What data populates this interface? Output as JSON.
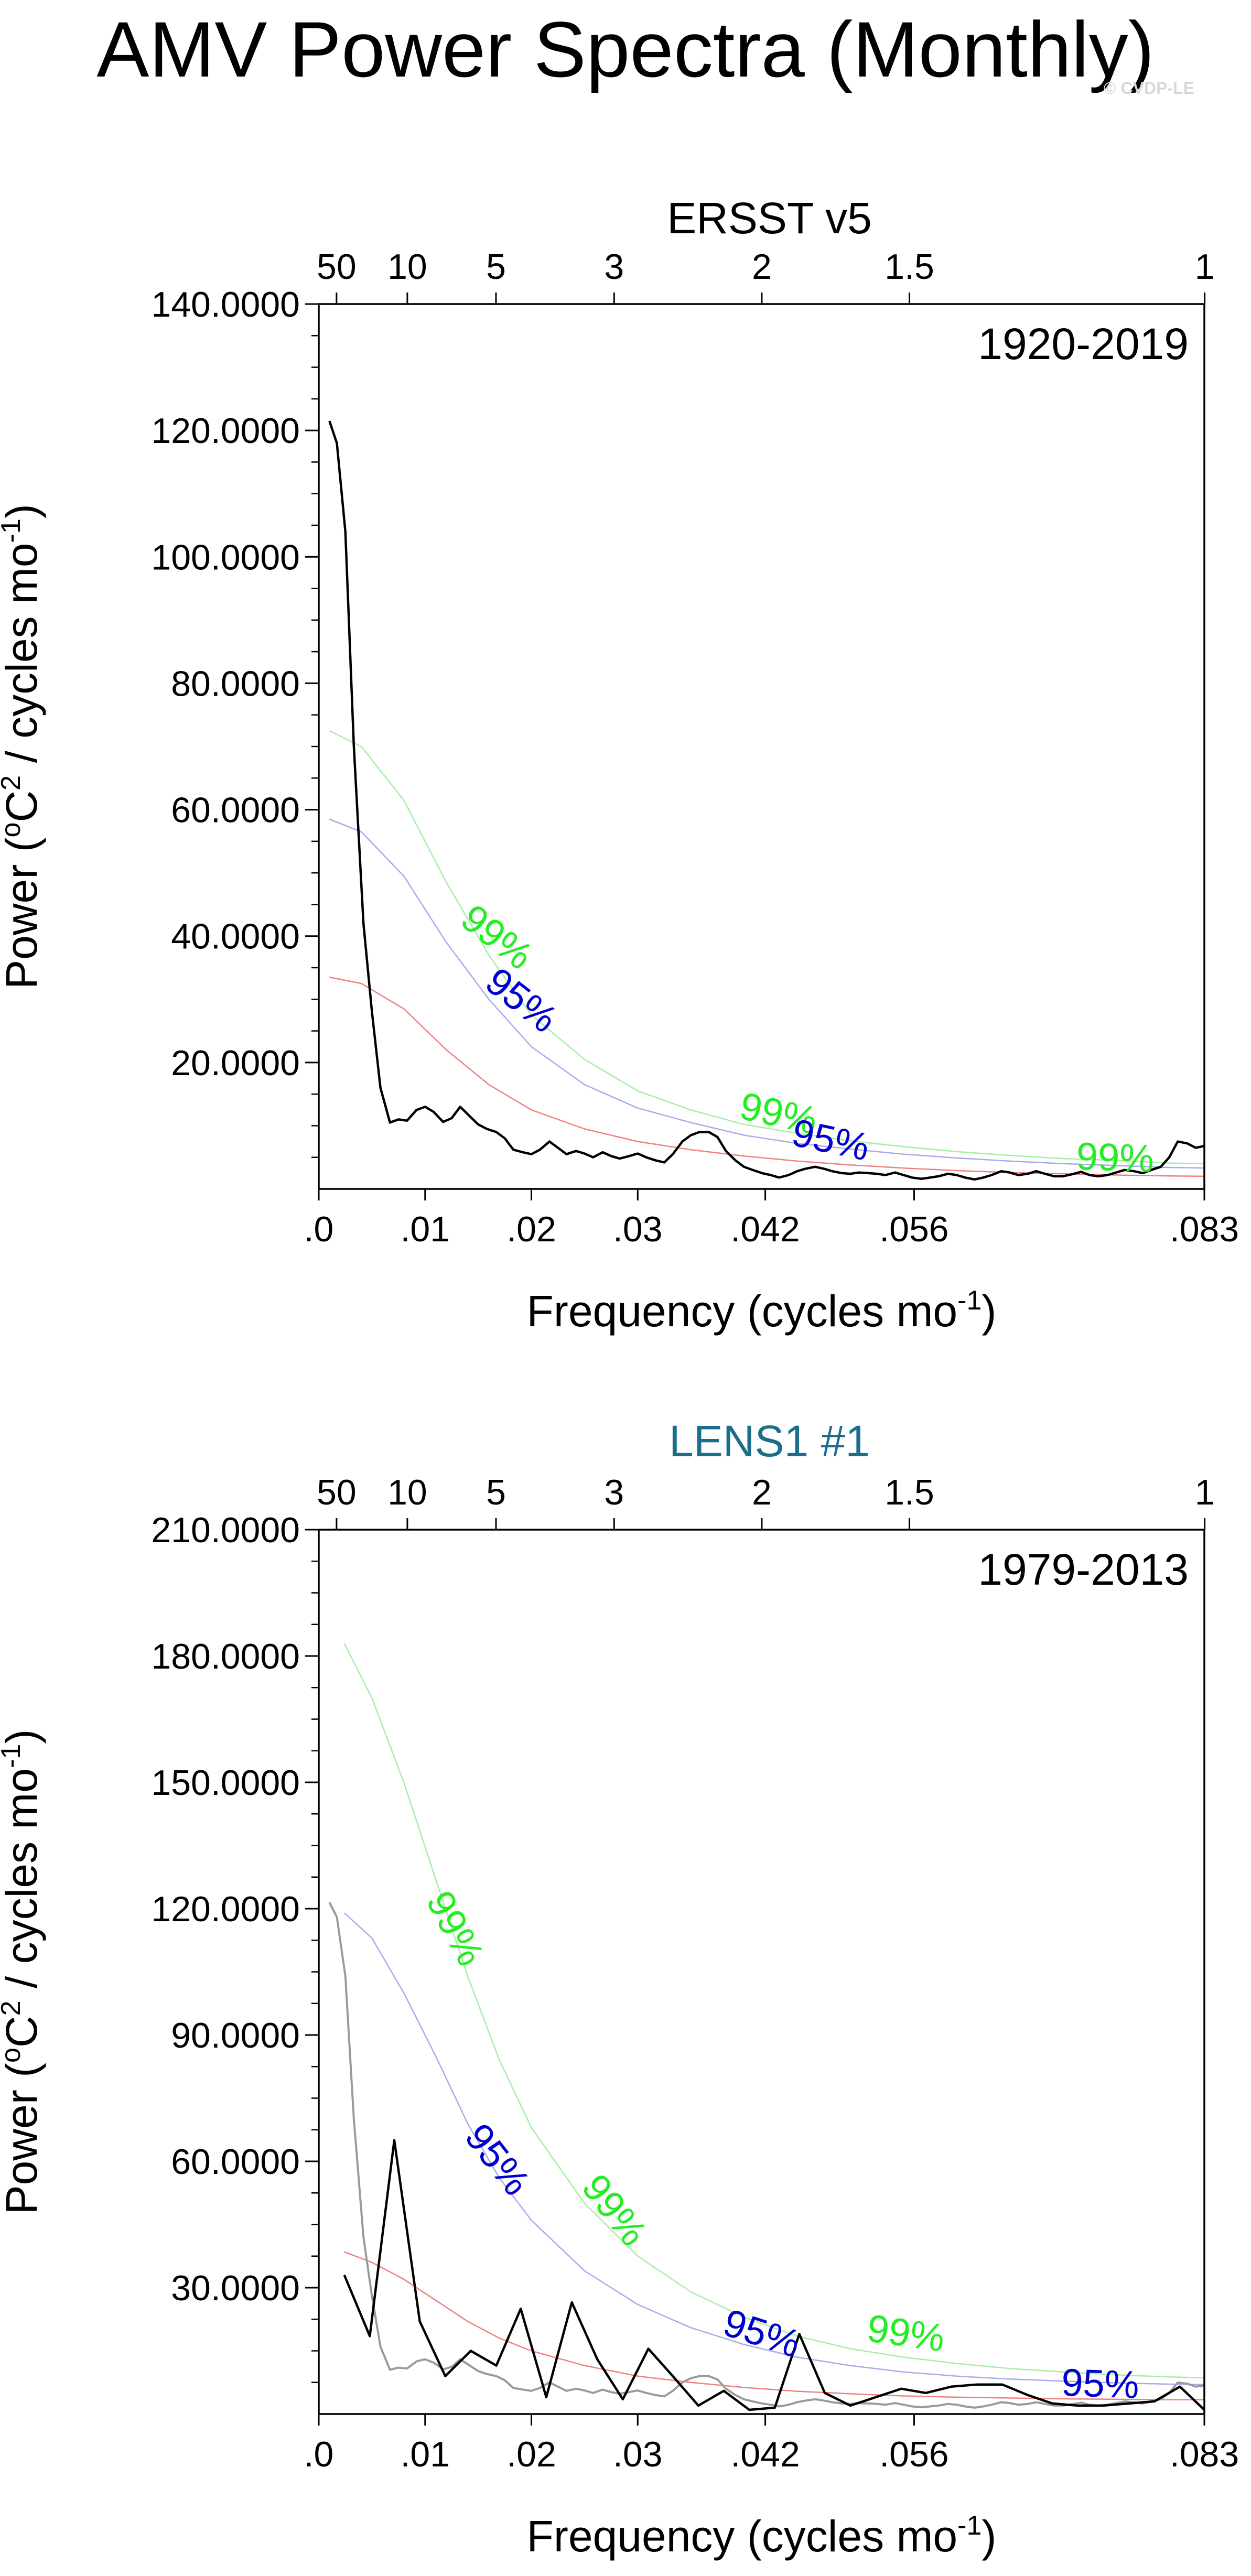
{
  "figure": {
    "title": "AMV Power Spectra (Monthly)",
    "credit": "© CVDP-LE",
    "colors": {
      "spectrum_obs": "#000000",
      "spectrum_model": "#000000",
      "spectrum_obs_overlay": "#9a9a9a",
      "red_noise": "#f08080",
      "ci95": "#a9a9ee",
      "ci99": "#a6eea6",
      "label95": "#0000cc",
      "label99": "#22ee22",
      "subtitle_obs": "#000000",
      "subtitle_model": "#1a6e8a"
    }
  },
  "chart_data": [
    {
      "type": "line",
      "title": "ERSST v5",
      "period_label": "1920-2019",
      "xlabel": "Frequency (cycles mo",
      "xlabel_sup": "-1",
      "xlabel_end": ")",
      "ylabel": "Power (",
      "ylabel_sup1": "o",
      "ylabel_mid": "C",
      "ylabel_sup2": "2",
      "ylabel_mid2": " / cycles mo",
      "ylabel_sup3": "-1",
      "ylabel_end": ")",
      "xlim": [
        0,
        0.0833
      ],
      "ylim": [
        0,
        140
      ],
      "x_ticks": [
        {
          "value": 0,
          "label": ".0"
        },
        {
          "value": 0.01,
          "label": ".01"
        },
        {
          "value": 0.02,
          "label": ".02"
        },
        {
          "value": 0.03,
          "label": ".03"
        },
        {
          "value": 0.042,
          "label": ".042"
        },
        {
          "value": 0.056,
          "label": ".056"
        },
        {
          "value": 0.0833,
          "label": ".083"
        }
      ],
      "y_ticks": [
        {
          "value": 20,
          "label": "20.0000"
        },
        {
          "value": 40,
          "label": "40.0000"
        },
        {
          "value": 60,
          "label": "60.0000"
        },
        {
          "value": 80,
          "label": "80.0000"
        },
        {
          "value": 100,
          "label": "100.0000"
        },
        {
          "value": 120,
          "label": "120.0000"
        },
        {
          "value": 140,
          "label": "140.0000"
        }
      ],
      "period_ticks": [
        {
          "value": 0.00167,
          "label": "50"
        },
        {
          "value": 0.00833,
          "label": "10"
        },
        {
          "value": 0.01667,
          "label": "5"
        },
        {
          "value": 0.02778,
          "label": "3"
        },
        {
          "value": 0.04167,
          "label": "2"
        },
        {
          "value": 0.05556,
          "label": "1.5"
        },
        {
          "value": 0.08333,
          "label": "1"
        }
      ],
      "series": [
        {
          "name": "spectrum",
          "x": [
            0.001,
            0.0017,
            0.0025,
            0.0033,
            0.0042,
            0.005,
            0.0058,
            0.0067,
            0.0075,
            0.0083,
            0.0092,
            0.01,
            0.0108,
            0.0117,
            0.0125,
            0.0133,
            0.0142,
            0.015,
            0.0158,
            0.0167,
            0.0175,
            0.0183,
            0.0192,
            0.02,
            0.0208,
            0.0217,
            0.0225,
            0.0233,
            0.0242,
            0.025,
            0.0258,
            0.0267,
            0.0275,
            0.0283,
            0.0292,
            0.03,
            0.0308,
            0.0317,
            0.0325,
            0.0333,
            0.0342,
            0.035,
            0.0358,
            0.0367,
            0.0375,
            0.0383,
            0.0392,
            0.04,
            0.0408,
            0.0417,
            0.0425,
            0.0433,
            0.0442,
            0.045,
            0.0458,
            0.0467,
            0.0475,
            0.0483,
            0.0492,
            0.05,
            0.0508,
            0.0517,
            0.0525,
            0.0533,
            0.0542,
            0.055,
            0.0558,
            0.0567,
            0.0575,
            0.0583,
            0.0592,
            0.06,
            0.0608,
            0.0617,
            0.0625,
            0.0633,
            0.0642,
            0.065,
            0.0658,
            0.0667,
            0.0675,
            0.0683,
            0.0692,
            0.07,
            0.0708,
            0.0717,
            0.0725,
            0.0733,
            0.0742,
            0.075,
            0.0758,
            0.0767,
            0.0775,
            0.0783,
            0.0792,
            0.08,
            0.0808,
            0.0817,
            0.0825,
            0.0833
          ],
          "y": [
            121.5,
            118,
            104,
            70,
            42,
            28,
            16,
            10.5,
            11,
            10.8,
            12.5,
            13,
            12.2,
            10.6,
            11.2,
            13,
            11.5,
            10.2,
            9.5,
            9,
            8,
            6.2,
            5.8,
            5.5,
            6.2,
            7.5,
            6.5,
            5.5,
            6,
            5.6,
            5,
            5.8,
            5.2,
            4.8,
            5.2,
            5.6,
            5,
            4.5,
            4.2,
            5.5,
            7.5,
            8.5,
            9,
            9,
            8.2,
            6,
            4.5,
            3.5,
            3,
            2.5,
            2.2,
            1.8,
            2.2,
            2.8,
            3.2,
            3.5,
            3.2,
            2.8,
            2.5,
            2.4,
            2.6,
            2.5,
            2.4,
            2.2,
            2.6,
            2.2,
            1.8,
            1.6,
            1.8,
            2,
            2.4,
            2.2,
            1.8,
            1.5,
            1.8,
            2.2,
            2.8,
            2.6,
            2.2,
            2.4,
            2.8,
            2.4,
            2,
            2,
            2.3,
            2.7,
            2.2,
            2,
            2.2,
            2.6,
            3,
            2.8,
            2.5,
            3,
            3.5,
            5,
            7.5,
            7.2,
            6.5,
            6.8
          ]
        },
        {
          "name": "red_noise",
          "x": [
            0.001,
            0.004,
            0.008,
            0.012,
            0.016,
            0.02,
            0.025,
            0.03,
            0.035,
            0.04,
            0.045,
            0.05,
            0.055,
            0.06,
            0.065,
            0.07,
            0.075,
            0.08,
            0.0833
          ],
          "y": [
            33.5,
            32.5,
            28.5,
            22,
            16.5,
            12.5,
            9.5,
            7.5,
            6.2,
            5.2,
            4.4,
            3.8,
            3.3,
            2.9,
            2.6,
            2.4,
            2.2,
            2.05,
            2
          ]
        },
        {
          "name": "ci95",
          "x": [
            0.001,
            0.004,
            0.008,
            0.012,
            0.016,
            0.02,
            0.025,
            0.03,
            0.035,
            0.04,
            0.045,
            0.05,
            0.055,
            0.06,
            0.065,
            0.07,
            0.075,
            0.08,
            0.0833
          ],
          "y": [
            58.5,
            56.5,
            49.5,
            39,
            30,
            22.5,
            16.5,
            12.8,
            10.5,
            8.5,
            7.2,
            6.3,
            5.5,
            4.9,
            4.4,
            4,
            3.7,
            3.4,
            3.3
          ]
        },
        {
          "name": "ci99",
          "x": [
            0.001,
            0.004,
            0.008,
            0.012,
            0.016,
            0.02,
            0.025,
            0.03,
            0.035,
            0.04,
            0.045,
            0.05,
            0.055,
            0.06,
            0.065,
            0.07,
            0.075,
            0.08,
            0.0833
          ],
          "y": [
            72.5,
            70,
            61.5,
            48.5,
            37,
            27.5,
            20.5,
            15.5,
            12.5,
            10.2,
            8.8,
            7.6,
            6.7,
            5.9,
            5.3,
            4.8,
            4.5,
            4.1,
            4
          ]
        }
      ],
      "annotations": [
        {
          "text": "99%",
          "kind": "ci99",
          "x": 0.0166,
          "y": 39.5,
          "angle": 38
        },
        {
          "text": "95%",
          "kind": "ci95",
          "x": 0.0189,
          "y": 29.5,
          "angle": 38
        },
        {
          "text": "99%",
          "kind": "ci99",
          "x": 0.0432,
          "y": 11.5,
          "angle": 12
        },
        {
          "text": "95%",
          "kind": "ci95",
          "x": 0.0481,
          "y": 7.3,
          "angle": 12
        },
        {
          "text": "99%",
          "kind": "ci99",
          "x": 0.0749,
          "y": 4.5,
          "angle": 2
        }
      ]
    },
    {
      "type": "line",
      "title": "LENS1 #1",
      "period_label": "1979-2013",
      "xlabel": "Frequency (cycles mo",
      "xlabel_sup": "-1",
      "xlabel_end": ")",
      "ylabel": "Power (",
      "ylabel_sup1": "o",
      "ylabel_mid": "C",
      "ylabel_sup2": "2",
      "ylabel_mid2": " / cycles mo",
      "ylabel_sup3": "-1",
      "ylabel_end": ")",
      "xlim": [
        0,
        0.0833
      ],
      "ylim": [
        0,
        210
      ],
      "x_ticks": [
        {
          "value": 0,
          "label": ".0"
        },
        {
          "value": 0.01,
          "label": ".01"
        },
        {
          "value": 0.02,
          "label": ".02"
        },
        {
          "value": 0.03,
          "label": ".03"
        },
        {
          "value": 0.042,
          "label": ".042"
        },
        {
          "value": 0.056,
          "label": ".056"
        },
        {
          "value": 0.0833,
          "label": ".083"
        }
      ],
      "y_ticks": [
        {
          "value": 30,
          "label": "30.0000"
        },
        {
          "value": 60,
          "label": "60.0000"
        },
        {
          "value": 90,
          "label": "90.0000"
        },
        {
          "value": 120,
          "label": "120.0000"
        },
        {
          "value": 150,
          "label": "150.0000"
        },
        {
          "value": 180,
          "label": "180.0000"
        },
        {
          "value": 210,
          "label": "210.0000"
        }
      ],
      "period_ticks": [
        {
          "value": 0.00167,
          "label": "50"
        },
        {
          "value": 0.00833,
          "label": "10"
        },
        {
          "value": 0.01667,
          "label": "5"
        },
        {
          "value": 0.02778,
          "label": "3"
        },
        {
          "value": 0.04167,
          "label": "2"
        },
        {
          "value": 0.05556,
          "label": "1.5"
        },
        {
          "value": 0.08333,
          "label": "1"
        }
      ],
      "series": [
        {
          "name": "observed_spectrum",
          "x": [
            0.001,
            0.0017,
            0.0025,
            0.0033,
            0.0042,
            0.005,
            0.0058,
            0.0067,
            0.0075,
            0.0083,
            0.0092,
            0.01,
            0.0108,
            0.0117,
            0.0125,
            0.0133,
            0.0142,
            0.015,
            0.0158,
            0.0167,
            0.0175,
            0.0183,
            0.0192,
            0.02,
            0.0208,
            0.0217,
            0.0225,
            0.0233,
            0.0242,
            0.025,
            0.0258,
            0.0267,
            0.0275,
            0.0283,
            0.0292,
            0.03,
            0.0308,
            0.0317,
            0.0325,
            0.0333,
            0.0342,
            0.035,
            0.0358,
            0.0367,
            0.0375,
            0.0383,
            0.0392,
            0.04,
            0.0408,
            0.0417,
            0.0425,
            0.0433,
            0.0442,
            0.045,
            0.0458,
            0.0467,
            0.0475,
            0.0483,
            0.0492,
            0.05,
            0.0508,
            0.0517,
            0.0525,
            0.0533,
            0.0542,
            0.055,
            0.0558,
            0.0567,
            0.0575,
            0.0583,
            0.0592,
            0.06,
            0.0608,
            0.0617,
            0.0625,
            0.0633,
            0.0642,
            0.065,
            0.0658,
            0.0667,
            0.0675,
            0.0683,
            0.0692,
            0.07,
            0.0708,
            0.0717,
            0.0725,
            0.0733,
            0.0742,
            0.075,
            0.0758,
            0.0767,
            0.0775,
            0.0783,
            0.0792,
            0.08,
            0.0808,
            0.0817,
            0.0825,
            0.0833
          ],
          "y": [
            121.5,
            118,
            104,
            70,
            42,
            28,
            16,
            10.5,
            11,
            10.8,
            12.5,
            13,
            12.2,
            10.6,
            11.2,
            13,
            11.5,
            10.2,
            9.5,
            9,
            8,
            6.2,
            5.8,
            5.5,
            6.2,
            7.5,
            6.5,
            5.5,
            6,
            5.6,
            5,
            5.8,
            5.2,
            4.8,
            5.2,
            5.6,
            5,
            4.5,
            4.2,
            5.5,
            7.5,
            8.5,
            9,
            9,
            8.2,
            6,
            4.5,
            3.5,
            3,
            2.5,
            2.2,
            1.8,
            2.2,
            2.8,
            3.2,
            3.5,
            3.2,
            2.8,
            2.5,
            2.4,
            2.6,
            2.5,
            2.4,
            2.2,
            2.6,
            2.2,
            1.8,
            1.6,
            1.8,
            2,
            2.4,
            2.2,
            1.8,
            1.5,
            1.8,
            2.2,
            2.8,
            2.6,
            2.2,
            2.4,
            2.8,
            2.4,
            2,
            2,
            2.3,
            2.7,
            2.2,
            2,
            2.2,
            2.6,
            3,
            2.8,
            2.5,
            3,
            3.5,
            5,
            7.5,
            7.2,
            6.5,
            6.8
          ]
        },
        {
          "name": "model_spectrum",
          "x": [
            0.0024,
            0.0048,
            0.0071,
            0.0095,
            0.0119,
            0.0143,
            0.0167,
            0.019,
            0.0214,
            0.0238,
            0.0262,
            0.0286,
            0.031,
            0.0333,
            0.0357,
            0.0381,
            0.0405,
            0.0429,
            0.0452,
            0.0476,
            0.05,
            0.0524,
            0.0548,
            0.0571,
            0.0595,
            0.0619,
            0.0643,
            0.0667,
            0.069,
            0.0714,
            0.0738,
            0.0762,
            0.0786,
            0.081,
            0.0833
          ],
          "y": [
            33,
            18.5,
            65,
            22,
            9,
            15,
            11.5,
            25,
            4,
            26.5,
            13,
            3.5,
            15.5,
            9,
            2,
            5.5,
            1,
            1.5,
            19,
            5,
            2,
            4,
            6,
            5,
            6.5,
            7,
            7,
            4.5,
            2.5,
            2,
            2,
            2.5,
            3,
            6.5,
            1
          ]
        },
        {
          "name": "red_noise",
          "x": [
            0.0024,
            0.005,
            0.008,
            0.011,
            0.014,
            0.017,
            0.02,
            0.025,
            0.03,
            0.035,
            0.04,
            0.045,
            0.05,
            0.055,
            0.06,
            0.065,
            0.07,
            0.075,
            0.08,
            0.0833
          ],
          "y": [
            38.5,
            36,
            32,
            27,
            22,
            18,
            15,
            11.5,
            9,
            7.5,
            6.3,
            5.4,
            4.8,
            4.3,
            4,
            3.8,
            3.6,
            3.5,
            3.4,
            3.4
          ]
        },
        {
          "name": "ci95",
          "x": [
            0.0024,
            0.005,
            0.008,
            0.011,
            0.014,
            0.017,
            0.02,
            0.025,
            0.03,
            0.035,
            0.04,
            0.045,
            0.05,
            0.055,
            0.06,
            0.065,
            0.07,
            0.075,
            0.08,
            0.0833
          ],
          "y": [
            119,
            113,
            100,
            85,
            69,
            56,
            46,
            34,
            26,
            20.5,
            16.5,
            13.5,
            11.5,
            10,
            9,
            8.3,
            7.8,
            7.4,
            7.1,
            7
          ]
        },
        {
          "name": "ci99",
          "x": [
            0.0024,
            0.005,
            0.008,
            0.011,
            0.014,
            0.017,
            0.02,
            0.025,
            0.03,
            0.035,
            0.04,
            0.045,
            0.05,
            0.055,
            0.06,
            0.065,
            0.07,
            0.075,
            0.08,
            0.0833
          ],
          "y": [
            183,
            170,
            150,
            127,
            104,
            84,
            68,
            50,
            37.5,
            29,
            23,
            18.5,
            15.5,
            13.5,
            12,
            10.8,
            10,
            9.3,
            8.8,
            8.6
          ]
        }
      ],
      "annotations": [
        {
          "text": "99%",
          "kind": "ci99",
          "x": 0.0126,
          "y": 115,
          "angle": 62
        },
        {
          "text": "95%",
          "kind": "ci95",
          "x": 0.0166,
          "y": 60,
          "angle": 52
        },
        {
          "text": "99%",
          "kind": "ci99",
          "x": 0.0276,
          "y": 48,
          "angle": 52
        },
        {
          "text": "95%",
          "kind": "ci95",
          "x": 0.0416,
          "y": 18.5,
          "angle": 18
        },
        {
          "text": "99%",
          "kind": "ci99",
          "x": 0.0552,
          "y": 18.5,
          "angle": 8
        },
        {
          "text": "95%",
          "kind": "ci95",
          "x": 0.0735,
          "y": 6.5,
          "angle": 2
        }
      ]
    }
  ]
}
